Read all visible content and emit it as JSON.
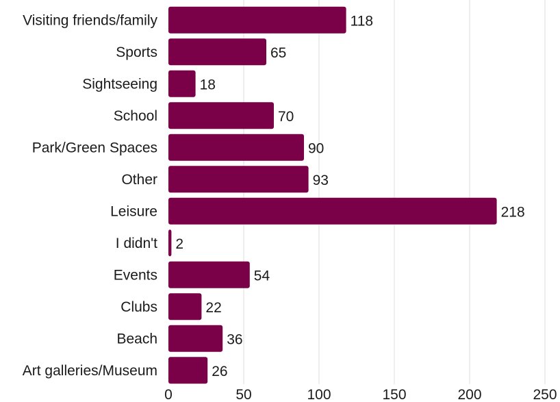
{
  "chart_data": {
    "type": "bar",
    "orientation": "horizontal",
    "categories": [
      "Visiting friends/family",
      "Sports",
      "Sightseeing",
      "School",
      "Park/Green Spaces",
      "Other",
      "Leisure",
      "I didn't",
      "Events",
      "Clubs",
      "Beach",
      "Art galleries/Museum"
    ],
    "values": [
      118,
      65,
      18,
      70,
      90,
      93,
      218,
      2,
      54,
      22,
      36,
      26
    ],
    "data_labels": [
      "118",
      "65",
      "18",
      "70",
      "90",
      "93",
      "218",
      "2",
      "54",
      "22",
      "36",
      "26"
    ],
    "xlim": [
      0,
      250
    ],
    "x_ticks": [
      0,
      50,
      100,
      150,
      200,
      250
    ],
    "x_tick_labels": [
      "0",
      "50",
      "100",
      "150",
      "200",
      "250"
    ],
    "grid": "vertical",
    "legend": "none",
    "title": "",
    "xlabel": "",
    "ylabel": "",
    "bar_color": "#7a0047"
  }
}
